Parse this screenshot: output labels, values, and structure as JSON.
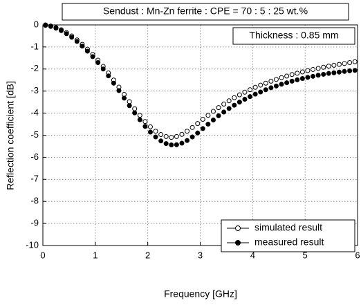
{
  "chart_data": {
    "type": "scatter",
    "title": "Sendust : Mn-Zn ferrite : CPE = 70 : 5 : 25 wt.%",
    "annotation": "Thickness : 0.85 mm",
    "xlabel": "Frequency [GHz]",
    "ylabel": "Reflection coefficient [dB]",
    "xlim": [
      0,
      6
    ],
    "ylim": [
      -10,
      0
    ],
    "xticks": [
      0,
      1,
      2,
      3,
      4,
      5,
      6
    ],
    "yticks": [
      0,
      -1,
      -2,
      -3,
      -4,
      -5,
      -6,
      -7,
      -8,
      -9,
      -10
    ],
    "grid": true,
    "legend": "lower right",
    "x": [
      0.05,
      0.15,
      0.25,
      0.35,
      0.45,
      0.55,
      0.65,
      0.75,
      0.85,
      0.95,
      1.05,
      1.15,
      1.25,
      1.35,
      1.45,
      1.55,
      1.65,
      1.75,
      1.85,
      1.95,
      2.05,
      2.15,
      2.25,
      2.35,
      2.45,
      2.55,
      2.65,
      2.75,
      2.85,
      2.95,
      3.05,
      3.15,
      3.25,
      3.35,
      3.45,
      3.55,
      3.65,
      3.75,
      3.85,
      3.95,
      4.05,
      4.15,
      4.25,
      4.35,
      4.45,
      4.55,
      4.65,
      4.75,
      4.85,
      4.95,
      5.05,
      5.15,
      5.25,
      5.35,
      5.45,
      5.55,
      5.65,
      5.75,
      5.85,
      5.95
    ],
    "series": [
      {
        "name": "simulated result",
        "color": "#000000",
        "marker_fill": "#ffffff",
        "values": [
          0,
          -0.05,
          -0.12,
          -0.22,
          -0.35,
          -0.5,
          -0.68,
          -0.88,
          -1.1,
          -1.34,
          -1.6,
          -1.88,
          -2.18,
          -2.5,
          -2.82,
          -3.15,
          -3.48,
          -3.8,
          -4.1,
          -4.38,
          -4.62,
          -4.82,
          -4.97,
          -5.06,
          -5.1,
          -5.06,
          -4.96,
          -4.82,
          -4.65,
          -4.47,
          -4.28,
          -4.1,
          -3.92,
          -3.75,
          -3.59,
          -3.44,
          -3.3,
          -3.17,
          -3.05,
          -2.94,
          -2.83,
          -2.73,
          -2.64,
          -2.55,
          -2.47,
          -2.39,
          -2.32,
          -2.25,
          -2.19,
          -2.13,
          -2.07,
          -2.02,
          -1.97,
          -1.92,
          -1.87,
          -1.83,
          -1.79,
          -1.75,
          -1.71,
          -1.67
        ]
      },
      {
        "name": "measured result",
        "color": "#000000",
        "marker_fill": "#000000",
        "values": [
          -0.02,
          -0.07,
          -0.15,
          -0.26,
          -0.4,
          -0.56,
          -0.75,
          -0.96,
          -1.19,
          -1.44,
          -1.71,
          -2.0,
          -2.31,
          -2.64,
          -2.98,
          -3.32,
          -3.66,
          -3.99,
          -4.3,
          -4.6,
          -4.86,
          -5.08,
          -5.26,
          -5.38,
          -5.44,
          -5.43,
          -5.36,
          -5.24,
          -5.08,
          -4.9,
          -4.7,
          -4.5,
          -4.31,
          -4.12,
          -3.95,
          -3.79,
          -3.64,
          -3.5,
          -3.37,
          -3.25,
          -3.14,
          -3.04,
          -2.94,
          -2.85,
          -2.77,
          -2.69,
          -2.62,
          -2.55,
          -2.49,
          -2.43,
          -2.38,
          -2.33,
          -2.28,
          -2.24,
          -2.2,
          -2.17,
          -2.14,
          -2.11,
          -2.08,
          -2.06
        ]
      }
    ]
  }
}
